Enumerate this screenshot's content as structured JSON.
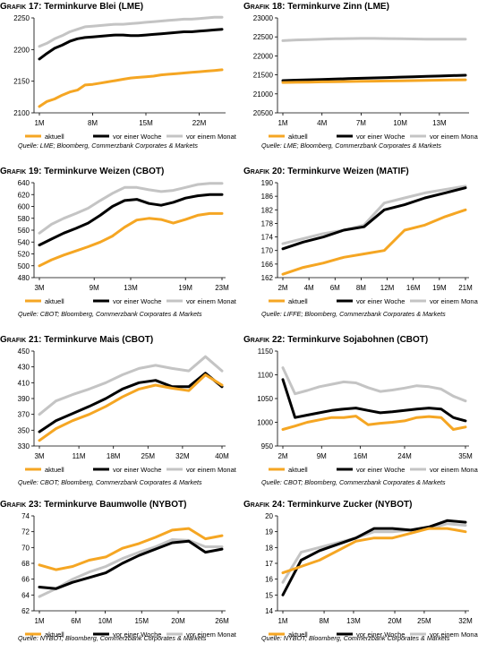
{
  "colors": {
    "aktuell": "#f5a623",
    "woche": "#000000",
    "monat": "#c4c4c4",
    "grid": "#000000"
  },
  "legend": [
    "aktuell",
    "vor einer Woche",
    "vor einem Monat"
  ],
  "chart_data": [
    {
      "type": "line",
      "label": "Grafik 17:",
      "title": "Terminkurve Blei (LME)",
      "source": "Quelle: LME; Bloomberg, Commerzbank Corporates & Markets",
      "ylim": [
        2100,
        2250
      ],
      "yticks": [
        2100,
        2150,
        2200,
        2250
      ],
      "xticks": [
        {
          "i": 0,
          "label": "1M"
        },
        {
          "i": 7,
          "label": "8M"
        },
        {
          "i": 14,
          "label": "15M"
        },
        {
          "i": 21,
          "label": "22M"
        }
      ],
      "series": [
        {
          "name": "aktuell",
          "values": [
            2110,
            2118,
            2122,
            2128,
            2133,
            2136,
            2144,
            2145,
            2147,
            2149,
            2151,
            2153,
            2155,
            2156,
            2157,
            2158,
            2160,
            2161,
            2162,
            2163,
            2164,
            2165,
            2166,
            2167,
            2168
          ]
        },
        {
          "name": "vor einer Woche",
          "values": [
            2185,
            2194,
            2202,
            2207,
            2213,
            2217,
            2219,
            2220,
            2221,
            2222,
            2223,
            2223,
            2222,
            2222,
            2223,
            2224,
            2225,
            2226,
            2227,
            2228,
            2228,
            2229,
            2230,
            2231,
            2232
          ]
        },
        {
          "name": "vor einem Monat",
          "values": [
            2205,
            2210,
            2217,
            2222,
            2228,
            2232,
            2236,
            2237,
            2238,
            2239,
            2240,
            2240,
            2241,
            2242,
            2243,
            2244,
            2245,
            2246,
            2247,
            2248,
            2248,
            2249,
            2250,
            2251,
            2251
          ]
        }
      ]
    },
    {
      "type": "line",
      "label": "Grafik 18:",
      "title": "Terminkurve Zinn (LME)",
      "source": "Quelle: LME; Bloomberg, Commerzbank Corporates & Markets",
      "ylim": [
        20500,
        23000
      ],
      "yticks": [
        20500,
        21000,
        21500,
        22000,
        22500,
        23000
      ],
      "xticks": [
        {
          "i": 0,
          "label": "1M"
        },
        {
          "i": 3,
          "label": "4M"
        },
        {
          "i": 6,
          "label": "7M"
        },
        {
          "i": 9,
          "label": "10M"
        },
        {
          "i": 12,
          "label": "13M"
        }
      ],
      "series": [
        {
          "name": "aktuell",
          "values": [
            21300,
            21305,
            21310,
            21315,
            21320,
            21325,
            21330,
            21335,
            21340,
            21345,
            21350,
            21355,
            21360,
            21365,
            21370
          ]
        },
        {
          "name": "vor einer Woche",
          "values": [
            21350,
            21360,
            21370,
            21380,
            21390,
            21400,
            21410,
            21420,
            21430,
            21440,
            21450,
            21460,
            21470,
            21480,
            21490
          ]
        },
        {
          "name": "vor einem Monat",
          "values": [
            22400,
            22420,
            22430,
            22440,
            22450,
            22455,
            22460,
            22460,
            22455,
            22450,
            22445,
            22440,
            22440,
            22440,
            22440
          ]
        }
      ]
    },
    {
      "type": "line",
      "label": "Grafik 19:",
      "title": "Terminkurve Weizen (CBOT)",
      "source": "Quelle: CBOT; Bloomberg, Commerzbank Corporates & Markets",
      "ylim": [
        480,
        640
      ],
      "yticks": [
        480,
        500,
        520,
        540,
        560,
        580,
        600,
        620,
        640
      ],
      "xticks": [
        {
          "i": 0,
          "label": "3M"
        },
        {
          "i": 6,
          "label": "9M"
        },
        {
          "i": 10,
          "label": "13M"
        },
        {
          "i": 16,
          "label": "19M"
        },
        {
          "i": 20,
          "label": "23M"
        }
      ],
      "series": [
        {
          "name": "aktuell",
          "values": [
            500,
            510,
            518,
            525,
            532,
            540,
            550,
            565,
            577,
            580,
            578,
            572,
            578,
            585,
            588,
            588
          ]
        },
        {
          "name": "vor einer Woche",
          "values": [
            535,
            545,
            555,
            563,
            572,
            585,
            600,
            610,
            612,
            605,
            602,
            607,
            614,
            618,
            620,
            620
          ]
        },
        {
          "name": "vor einem Monat",
          "values": [
            555,
            570,
            580,
            588,
            597,
            610,
            622,
            632,
            632,
            628,
            625,
            627,
            632,
            637,
            639,
            639
          ]
        }
      ]
    },
    {
      "type": "line",
      "label": "Grafik 20:",
      "title": "Terminkurve Weizen (MATIF)",
      "source": "Quelle: LIFFE; Bloomberg, Commerzbank Corporates & Markets",
      "ylim": [
        162,
        190
      ],
      "yticks": [
        162,
        166,
        170,
        174,
        178,
        182,
        186,
        190
      ],
      "xticks": [
        {
          "i": 0,
          "label": "2M"
        },
        {
          "i": 2,
          "label": "4M"
        },
        {
          "i": 4,
          "label": "6M"
        },
        {
          "i": 6,
          "label": "8M"
        },
        {
          "i": 8,
          "label": "12M"
        },
        {
          "i": 10,
          "label": "16M"
        },
        {
          "i": 12,
          "label": "19M"
        },
        {
          "i": 14,
          "label": "21M"
        }
      ],
      "series": [
        {
          "name": "aktuell",
          "values": [
            163,
            165,
            166.3,
            168,
            169,
            170,
            176,
            177.5,
            180,
            182
          ]
        },
        {
          "name": "vor einer Woche",
          "values": [
            170.5,
            172.5,
            174,
            176,
            177,
            182,
            183.5,
            185.5,
            187,
            188.5
          ]
        },
        {
          "name": "vor einem Monat",
          "values": [
            172,
            173.5,
            175,
            176,
            177.5,
            184,
            185.5,
            187,
            188,
            189
          ]
        }
      ]
    },
    {
      "type": "line",
      "label": "Grafik 21:",
      "title": "Terminkurve Mais (CBOT)",
      "source": "Quelle: CBOT; Bloomberg, Commerzbank Corporates & Markets",
      "ylim": [
        330,
        450
      ],
      "yticks": [
        330,
        350,
        370,
        390,
        410,
        430,
        450
      ],
      "xticks": [
        {
          "i": 0,
          "label": "3M"
        },
        {
          "i": 8,
          "label": "11M"
        },
        {
          "i": 15,
          "label": "18M"
        },
        {
          "i": 22,
          "label": "25M"
        },
        {
          "i": 29,
          "label": "32M"
        },
        {
          "i": 37,
          "label": "40M"
        }
      ],
      "series": [
        {
          "name": "aktuell",
          "values": [
            337,
            352,
            362,
            370,
            380,
            392,
            402,
            407,
            403,
            400,
            420,
            407
          ]
        },
        {
          "name": "vor einer Woche",
          "values": [
            348,
            362,
            371,
            380,
            390,
            402,
            410,
            413,
            405,
            405,
            422,
            405
          ]
        },
        {
          "name": "vor einem Monat",
          "values": [
            370,
            387,
            395,
            402,
            410,
            420,
            428,
            432,
            428,
            425,
            443,
            425
          ]
        }
      ]
    },
    {
      "type": "line",
      "label": "Grafik 22:",
      "title": "Terminkurve Sojabohnen (CBOT)",
      "source": "Quelle: CBOT; Bloomberg, Commerzbank Corporates & Markets",
      "ylim": [
        950,
        1150
      ],
      "yticks": [
        950,
        1000,
        1050,
        1100,
        1150
      ],
      "xticks": [
        {
          "i": 0,
          "label": "2M"
        },
        {
          "i": 7,
          "label": "9M"
        },
        {
          "i": 14,
          "label": "16M"
        },
        {
          "i": 22,
          "label": "24M"
        },
        {
          "i": 33,
          "label": "35M"
        }
      ],
      "series": [
        {
          "name": "aktuell",
          "values": [
            985,
            992,
            1000,
            1005,
            1010,
            1010,
            1013,
            995,
            998,
            1000,
            1003,
            1010,
            1012,
            1010,
            985,
            990
          ]
        },
        {
          "name": "vor einer Woche",
          "values": [
            1090,
            1010,
            1015,
            1020,
            1025,
            1028,
            1030,
            1025,
            1020,
            1022,
            1025,
            1028,
            1030,
            1028,
            1010,
            1003
          ]
        },
        {
          "name": "vor einem Monat",
          "values": [
            1115,
            1060,
            1067,
            1075,
            1080,
            1085,
            1083,
            1073,
            1065,
            1068,
            1072,
            1077,
            1075,
            1070,
            1055,
            1045
          ]
        }
      ]
    },
    {
      "type": "line",
      "label": "Grafik 23:",
      "title": "Terminkurve Baumwolle (NYBOT)",
      "source": "Quelle: NYBOT; Bloomberg, Commerzbank Corporates & Markets",
      "ylim": [
        62,
        74
      ],
      "yticks": [
        62,
        64,
        66,
        68,
        70,
        72,
        74
      ],
      "xticks": [
        {
          "i": 0,
          "label": "1M"
        },
        {
          "i": 5,
          "label": "6M"
        },
        {
          "i": 9,
          "label": "10M"
        },
        {
          "i": 14,
          "label": "15M"
        },
        {
          "i": 19,
          "label": "20M"
        },
        {
          "i": 25,
          "label": "26M"
        }
      ],
      "series": [
        {
          "name": "aktuell",
          "values": [
            67.8,
            67.2,
            67.6,
            68.4,
            68.8,
            69.9,
            70.5,
            71.3,
            72.2,
            72.4,
            71.1,
            71.5
          ]
        },
        {
          "name": "vor einer Woche",
          "values": [
            65.0,
            64.8,
            65.6,
            66.2,
            66.8,
            68.0,
            69.0,
            69.8,
            70.6,
            70.8,
            69.4,
            69.8
          ]
        },
        {
          "name": "vor einem Monat",
          "values": [
            63.8,
            64.8,
            66.0,
            66.9,
            67.6,
            68.6,
            69.4,
            70.1,
            71.0,
            70.9,
            70.1,
            70.1
          ]
        }
      ]
    },
    {
      "type": "line",
      "label": "Grafik 24:",
      "title": "Terminkurve Zucker (NYBOT)",
      "source": "Quelle: NYBOT; Bloomberg, Commerzbank Corporates & Markets",
      "ylim": [
        14,
        20
      ],
      "yticks": [
        14,
        15,
        16,
        17,
        18,
        19,
        20
      ],
      "xticks": [
        {
          "i": 0,
          "label": "1M"
        },
        {
          "i": 7,
          "label": "8M"
        },
        {
          "i": 12,
          "label": "13M"
        },
        {
          "i": 19,
          "label": "20M"
        },
        {
          "i": 24,
          "label": "25M"
        },
        {
          "i": 31,
          "label": "32M"
        }
      ],
      "series": [
        {
          "name": "aktuell",
          "values": [
            16.4,
            16.8,
            17.2,
            17.8,
            18.4,
            18.6,
            18.6,
            18.9,
            19.2,
            19.2,
            19.0
          ]
        },
        {
          "name": "vor einer Woche",
          "values": [
            15.0,
            17.2,
            17.8,
            18.2,
            18.6,
            19.2,
            19.2,
            19.1,
            19.3,
            19.7,
            19.6
          ]
        },
        {
          "name": "vor einem Monat",
          "values": [
            15.8,
            17.7,
            18.0,
            18.3,
            18.6,
            19.0,
            19.0,
            19.1,
            19.2,
            19.5,
            19.4
          ]
        }
      ]
    }
  ]
}
